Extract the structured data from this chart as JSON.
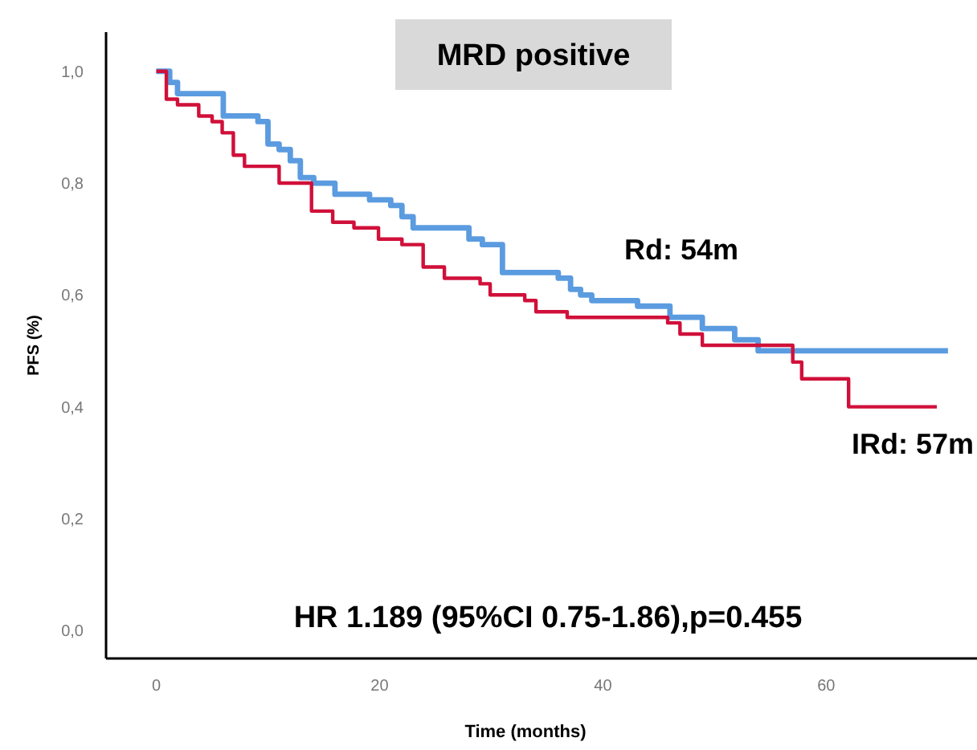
{
  "chart_data": {
    "type": "step",
    "title": "MRD positive",
    "xlabel": "Time (months)",
    "ylabel": "PFS (%)",
    "xlim": [
      -4.5,
      73.5
    ],
    "xticks": [
      0,
      20,
      40,
      60
    ],
    "ylim": [
      -0.05,
      1.07
    ],
    "yticks": [
      {
        "value": 0,
        "label": "0,0"
      },
      {
        "value": 0.2,
        "label": "0,2"
      },
      {
        "value": 0.4,
        "label": "0,4"
      },
      {
        "value": 0.6,
        "label": "0,6"
      },
      {
        "value": 0.8,
        "label": "0,8"
      },
      {
        "value": 1,
        "label": "1,0"
      }
    ],
    "grid": false,
    "marker": "none",
    "line_style": "solid",
    "series": [
      {
        "color": "#5b9be0",
        "x": [
          0,
          1.2,
          1.9,
          6,
          9.1,
          10,
          11,
          12,
          12.9,
          14.1,
          16,
          19.1,
          21,
          22,
          23,
          28,
          29.2,
          31,
          36,
          37.1,
          38,
          39,
          43.1,
          46,
          48.9,
          51.8,
          53.9,
          70.9
        ],
        "values": [
          1.0,
          0.98,
          0.96,
          0.92,
          0.91,
          0.87,
          0.86,
          0.84,
          0.81,
          0.8,
          0.78,
          0.77,
          0.76,
          0.74,
          0.72,
          0.7,
          0.69,
          0.64,
          0.63,
          0.61,
          0.6,
          0.59,
          0.58,
          0.56,
          0.54,
          0.52,
          0.5,
          0.5
        ]
      },
      {
        "color": "#d0103a",
        "x": [
          0,
          0.9,
          1.9,
          3.8,
          5,
          5.9,
          6.9,
          7.9,
          11,
          13.9,
          15.8,
          17.7,
          19.9,
          22,
          23.9,
          25.8,
          29,
          29.9,
          33,
          34,
          36.8,
          45.8,
          46.9,
          48.9,
          57,
          57.8,
          62,
          69.9
        ],
        "values": [
          1.0,
          0.95,
          0.94,
          0.92,
          0.91,
          0.89,
          0.85,
          0.83,
          0.8,
          0.75,
          0.73,
          0.72,
          0.7,
          0.69,
          0.65,
          0.63,
          0.62,
          0.6,
          0.59,
          0.57,
          0.56,
          0.55,
          0.53,
          0.51,
          0.48,
          0.45,
          0.4,
          0.4
        ]
      }
    ],
    "annotations": [
      "Rd: 54m",
      "IRd: 57m",
      "HR 1.189 (95%CI 0.75-1.86),p=0.455"
    ]
  }
}
